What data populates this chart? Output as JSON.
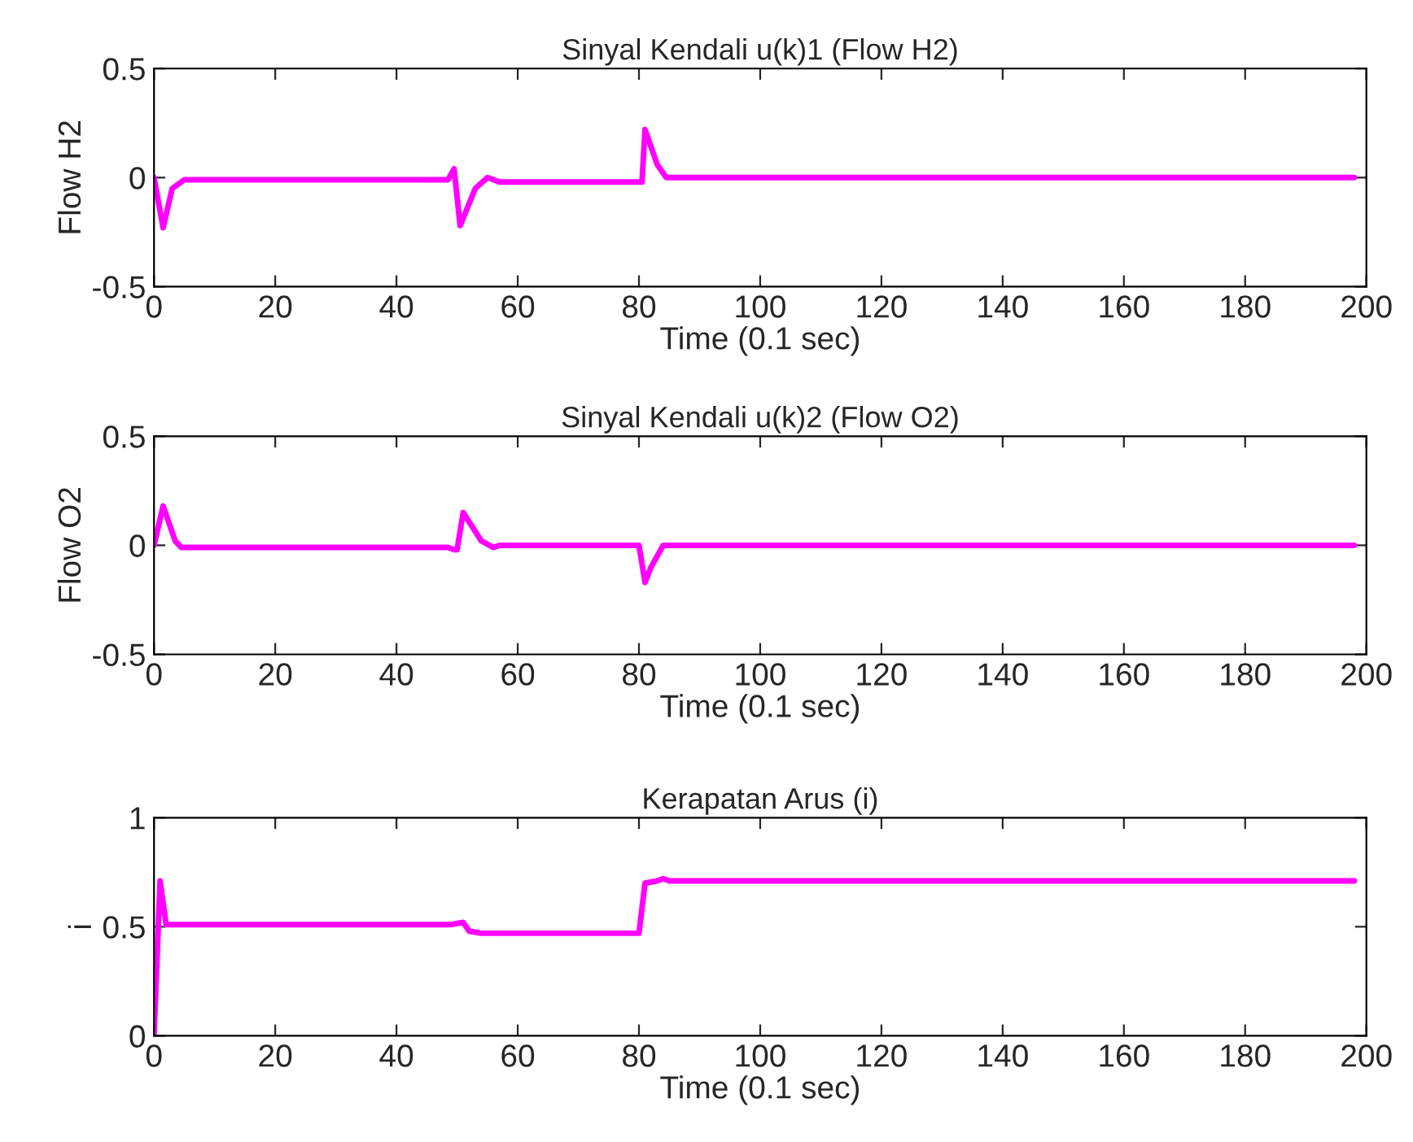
{
  "chart_data": [
    {
      "type": "line",
      "title": "Sinyal Kendali u(k)1 (Flow H2)",
      "xlabel": "Time (0.1 sec)",
      "ylabel": "Flow H2",
      "xlim": [
        0,
        200
      ],
      "xticks": [
        0,
        20,
        40,
        60,
        80,
        100,
        120,
        140,
        160,
        180,
        200
      ],
      "ylim": [
        -0.5,
        0.5
      ],
      "yticks": [
        -0.5,
        0,
        0.5
      ],
      "grid": false,
      "legend": false,
      "marker": "none",
      "line_style": "solid",
      "series": [
        {
          "color": "#ff00ff",
          "x": [
            0,
            1.5,
            3,
            5,
            48.5,
            49.5,
            50.5,
            53,
            55,
            56,
            57,
            80.5,
            81,
            83,
            84.5,
            198
          ],
          "values": [
            0,
            -0.23,
            -0.05,
            -0.01,
            -0.01,
            0.04,
            -0.22,
            -0.05,
            0,
            -0.01,
            -0.02,
            -0.02,
            0.22,
            0.06,
            0,
            0
          ]
        }
      ]
    },
    {
      "type": "line",
      "title": "Sinyal Kendali u(k)2 (Flow O2)",
      "xlabel": "Time (0.1 sec)",
      "ylabel": "Flow O2",
      "xlim": [
        0,
        200
      ],
      "xticks": [
        0,
        20,
        40,
        60,
        80,
        100,
        120,
        140,
        160,
        180,
        200
      ],
      "ylim": [
        -0.5,
        0.5
      ],
      "yticks": [
        -0.5,
        0,
        0.5
      ],
      "grid": false,
      "legend": false,
      "marker": "none",
      "line_style": "solid",
      "series": [
        {
          "color": "#ff00ff",
          "x": [
            0,
            1.5,
            3.5,
            4.5,
            48.5,
            49.5,
            50,
            51,
            54,
            56,
            57,
            80,
            81,
            82,
            84,
            198
          ],
          "values": [
            0,
            0.18,
            0.02,
            -0.01,
            -0.01,
            -0.02,
            -0.02,
            0.15,
            0.02,
            -0.01,
            0,
            0,
            -0.17,
            -0.1,
            0,
            0
          ]
        }
      ]
    },
    {
      "type": "line",
      "title": "Kerapatan Arus (i)",
      "xlabel": "Time (0.1 sec)",
      "ylabel": "i",
      "xlim": [
        0,
        200
      ],
      "xticks": [
        0,
        20,
        40,
        60,
        80,
        100,
        120,
        140,
        160,
        180,
        200
      ],
      "ylim": [
        0,
        1
      ],
      "yticks": [
        0,
        0.5,
        1
      ],
      "grid": false,
      "legend": false,
      "marker": "none",
      "line_style": "solid",
      "series": [
        {
          "color": "#ff00ff",
          "x": [
            0,
            1,
            2,
            49,
            51,
            52,
            54,
            56,
            80,
            81,
            83,
            84,
            85,
            198
          ],
          "values": [
            0,
            0.71,
            0.51,
            0.51,
            0.52,
            0.48,
            0.47,
            0.47,
            0.47,
            0.7,
            0.71,
            0.72,
            0.71,
            0.71
          ]
        }
      ]
    }
  ]
}
